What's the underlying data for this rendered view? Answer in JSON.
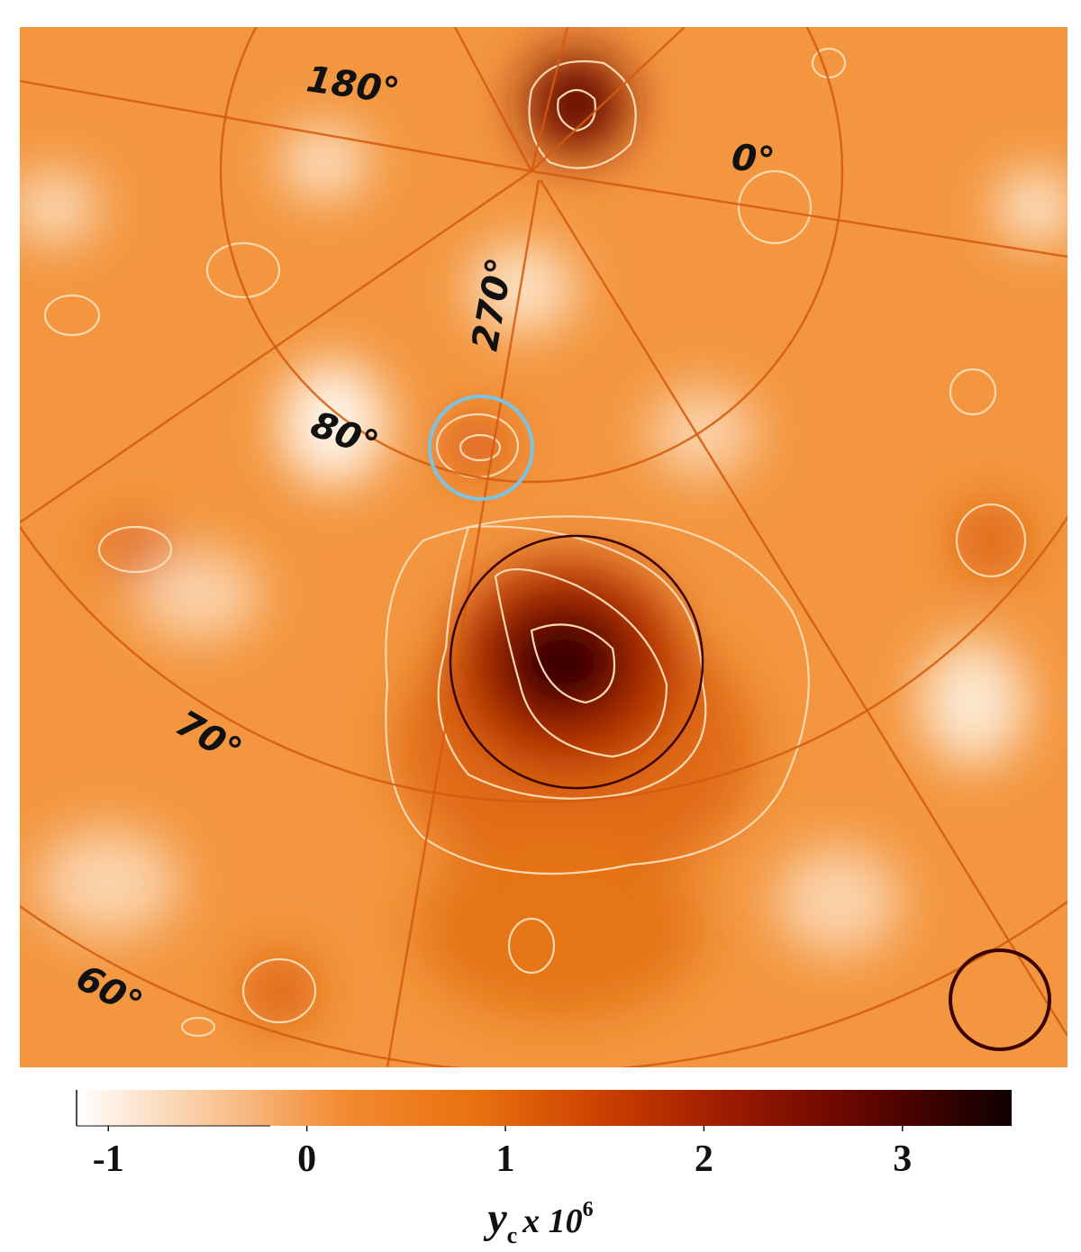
{
  "chart_data": {
    "type": "map",
    "grid_labels": [
      "180°",
      "0°",
      "270°",
      "80°",
      "70°",
      "60°"
    ],
    "colorbar": {
      "lim": [
        -1.16,
        3.55
      ],
      "ticks": [
        -1,
        0,
        1,
        2,
        3
      ],
      "colormap": [
        "#ffffff",
        "#f9c89c",
        "#f28a30",
        "#e9700f",
        "#c83d00",
        "#961600",
        "#5a0400",
        "#0d0000"
      ],
      "label": {
        "symbol": "y",
        "subscript": "c",
        "multiplier": "x 10",
        "exponent": "6"
      }
    }
  }
}
